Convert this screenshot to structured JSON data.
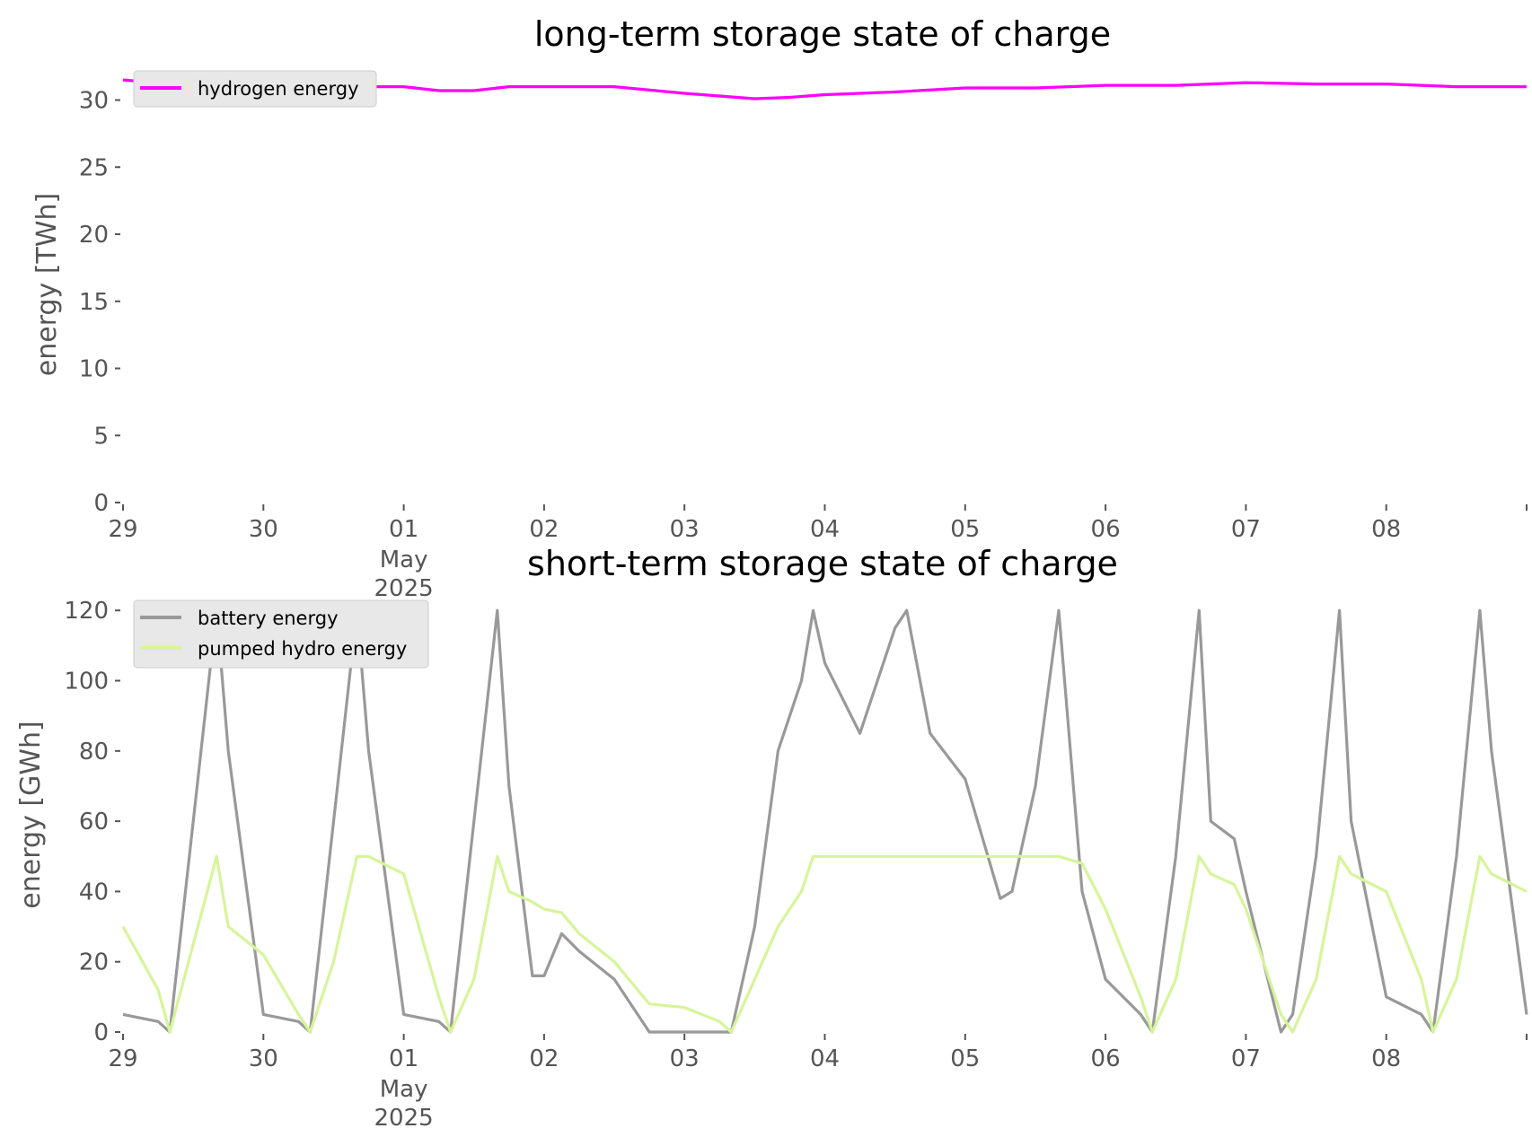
{
  "chart_data": [
    {
      "type": "line",
      "title": "long-term storage state of charge",
      "xlabel": "",
      "ylabel": "energy [TWh]",
      "x_tick_labels": [
        "29",
        "30",
        "01",
        "02",
        "03",
        "04",
        "05",
        "06",
        "07",
        "08"
      ],
      "x_offset_label": [
        "May",
        "2025"
      ],
      "x": [
        "2025-04-29",
        "2025-04-29T12:00",
        "2025-04-30",
        "2025-04-30T12:00",
        "2025-05-01",
        "2025-05-01T06:00",
        "2025-05-01T12:00",
        "2025-05-01T18:00",
        "2025-05-02",
        "2025-05-02T06:00",
        "2025-05-02T12:00",
        "2025-05-03",
        "2025-05-03T06:00",
        "2025-05-03T12:00",
        "2025-05-03T18:00",
        "2025-05-04",
        "2025-05-04T12:00",
        "2025-05-05",
        "2025-05-05T12:00",
        "2025-05-06",
        "2025-05-06T12:00",
        "2025-05-07",
        "2025-05-07T12:00",
        "2025-05-08",
        "2025-05-08T12:00",
        "2025-05-09"
      ],
      "ylim": [
        0,
        32
      ],
      "yticks": [
        0,
        5,
        10,
        15,
        20,
        25,
        30
      ],
      "grid": false,
      "legend": "top-left",
      "series": [
        {
          "name": "hydrogen energy",
          "color": "#ff00ff",
          "values": [
            31.5,
            31.1,
            31.3,
            31.0,
            31.0,
            30.7,
            30.7,
            31.0,
            31.0,
            31.0,
            31.0,
            30.5,
            30.3,
            30.1,
            30.2,
            30.4,
            30.6,
            30.9,
            30.9,
            31.1,
            31.1,
            31.3,
            31.2,
            31.2,
            31.0,
            31.0
          ]
        }
      ]
    },
    {
      "type": "line",
      "title": "short-term storage state of charge",
      "xlabel": "",
      "ylabel": "energy [GWh]",
      "x_tick_labels": [
        "29",
        "30",
        "01",
        "02",
        "03",
        "04",
        "05",
        "06",
        "07",
        "08"
      ],
      "x_offset_label": [
        "May",
        "2025"
      ],
      "x": [
        "2025-04-29",
        "2025-04-29T06:00",
        "2025-04-29T08:00",
        "2025-04-29T12:00",
        "2025-04-29T16:00",
        "2025-04-29T18:00",
        "2025-04-30",
        "2025-04-30T06:00",
        "2025-04-30T08:00",
        "2025-04-30T12:00",
        "2025-04-30T16:00",
        "2025-04-30T18:00",
        "2025-05-01",
        "2025-05-01T06:00",
        "2025-05-01T08:00",
        "2025-05-01T12:00",
        "2025-05-01T16:00",
        "2025-05-01T18:00",
        "2025-05-01T22:00",
        "2025-05-02",
        "2025-05-02T03:00",
        "2025-05-02T06:00",
        "2025-05-02T12:00",
        "2025-05-02T18:00",
        "2025-05-03",
        "2025-05-03T06:00",
        "2025-05-03T08:00",
        "2025-05-03T12:00",
        "2025-05-03T16:00",
        "2025-05-03T20:00",
        "2025-05-03T22:00",
        "2025-05-04",
        "2025-05-04T06:00",
        "2025-05-04T12:00",
        "2025-05-04T14:00",
        "2025-05-04T18:00",
        "2025-05-05",
        "2025-05-05T06:00",
        "2025-05-05T08:00",
        "2025-05-05T12:00",
        "2025-05-05T16:00",
        "2025-05-05T20:00",
        "2025-05-06",
        "2025-05-06T06:00",
        "2025-05-06T08:00",
        "2025-05-06T12:00",
        "2025-05-06T16:00",
        "2025-05-06T18:00",
        "2025-05-06T22:00",
        "2025-05-07",
        "2025-05-07T06:00",
        "2025-05-07T08:00",
        "2025-05-07T12:00",
        "2025-05-07T16:00",
        "2025-05-07T18:00",
        "2025-05-08",
        "2025-05-08T06:00",
        "2025-05-08T08:00",
        "2025-05-08T12:00",
        "2025-05-08T16:00",
        "2025-05-08T18:00",
        "2025-05-09"
      ],
      "ylim": [
        0,
        125
      ],
      "yticks": [
        0,
        20,
        40,
        60,
        80,
        100,
        120
      ],
      "grid": false,
      "legend": "top-left",
      "series": [
        {
          "name": "battery energy",
          "color": "#999999",
          "values": [
            5,
            3,
            0,
            60,
            120,
            80,
            5,
            3,
            0,
            60,
            120,
            80,
            5,
            3,
            0,
            60,
            120,
            70,
            16,
            16,
            28,
            23,
            15,
            0,
            0,
            0,
            0,
            30,
            80,
            100,
            120,
            105,
            85,
            115,
            120,
            85,
            72,
            38,
            40,
            70,
            120,
            40,
            15,
            5,
            0,
            50,
            120,
            60,
            55,
            40,
            0,
            5,
            50,
            120,
            60,
            10,
            5,
            0,
            50,
            120,
            80,
            5
          ]
        },
        {
          "name": "pumped hydro energy",
          "color": "#d6f59a",
          "values": [
            30,
            12,
            0,
            25,
            50,
            30,
            22,
            5,
            0,
            20,
            50,
            50,
            45,
            10,
            0,
            15,
            50,
            40,
            37,
            35,
            34,
            28,
            20,
            8,
            7,
            3,
            0,
            15,
            30,
            40,
            50,
            50,
            50,
            50,
            50,
            50,
            50,
            50,
            50,
            50,
            50,
            48,
            35,
            10,
            0,
            15,
            50,
            45,
            42,
            35,
            5,
            0,
            15,
            50,
            45,
            40,
            15,
            0,
            15,
            50,
            45,
            40
          ]
        }
      ]
    }
  ]
}
